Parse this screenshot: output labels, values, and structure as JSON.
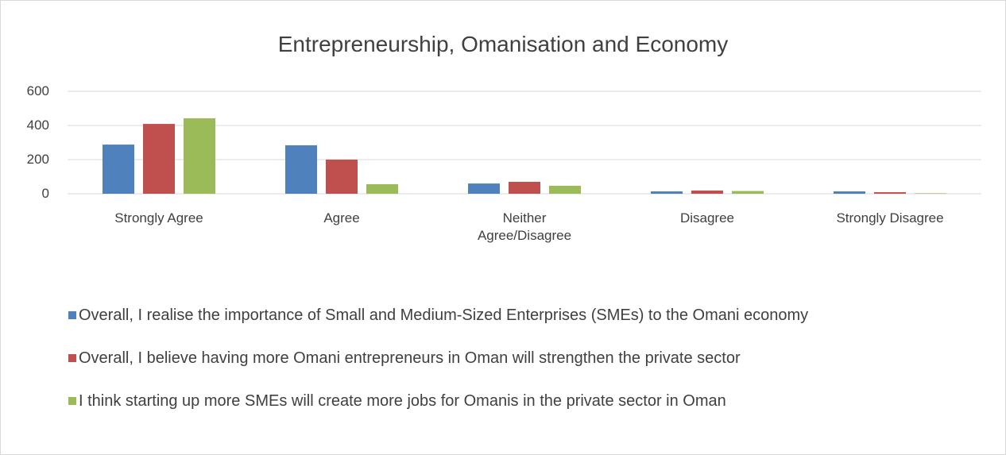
{
  "chart_data": {
    "type": "bar",
    "title": "Entrepreneurship, Omanisation and Economy",
    "categories": [
      "Strongly Agree",
      "Agree",
      "Neither Agree/Disagree",
      "Disagree",
      "Strongly Disagree"
    ],
    "series": [
      {
        "name": "Overall, I realise the importance of Small and Medium-Sized Enterprises (SMEs) to the Omani economy",
        "color": "#4f81bd",
        "values": [
          288,
          284,
          60,
          14,
          14
        ]
      },
      {
        "name": "Overall, I believe having more Omani entrepreneurs in Oman will strengthen the private sector",
        "color": "#c0504d",
        "values": [
          409,
          200,
          70,
          19,
          9
        ]
      },
      {
        "name": "I think starting up more SMEs will create more jobs for Omanis in the private sector in Oman",
        "color": "#9bbb59",
        "values": [
          442,
          56,
          47,
          16,
          3
        ]
      }
    ],
    "ylim": [
      0,
      600
    ],
    "yticks": [
      0,
      200,
      400,
      600
    ],
    "grid": true,
    "legend": "bottom"
  }
}
